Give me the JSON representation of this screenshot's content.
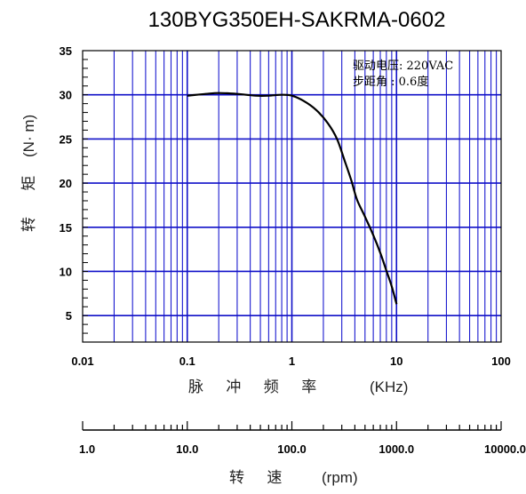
{
  "chart_data": {
    "type": "line",
    "title": "130BYG350EH-SAKRMA-0602",
    "xlabel": "脉 冲 频 率",
    "xlabel_unit": "(KHz)",
    "ylabel": "转 矩",
    "ylabel_unit": "(N· m)",
    "xscale": "log",
    "xlim": [
      0.01,
      100
    ],
    "ylim": [
      2,
      35
    ],
    "x_ticks": [
      "0.01",
      "0.1",
      "1",
      "10",
      "100"
    ],
    "y_ticks": [
      "5",
      "10",
      "15",
      "20",
      "25",
      "30",
      "35"
    ],
    "annotation": [
      "驱动电压: 220VAC",
      "步距角 : 0.6度"
    ],
    "series": [
      {
        "x": [
          0.1,
          0.15,
          0.2,
          0.3,
          0.45,
          0.6,
          0.8,
          1.0,
          1.3,
          1.7,
          2.2,
          2.7,
          3.2,
          3.7,
          4.2,
          5.0,
          6.0,
          7.0,
          8.0,
          9.0,
          10.0
        ],
        "y": [
          29.9,
          30.1,
          30.2,
          30.1,
          29.9,
          29.9,
          30.0,
          29.9,
          29.3,
          28.3,
          26.8,
          25.0,
          22.5,
          20.3,
          18.1,
          16.2,
          14.1,
          12.1,
          10.1,
          8.3,
          6.3
        ]
      }
    ],
    "grid": true,
    "secondary_axis": {
      "label": "转 速",
      "unit": "(rpm)",
      "xscale": "log",
      "xlim": [
        1.0,
        10000.0
      ],
      "ticks": [
        "1.0",
        "10.0",
        "100.0",
        "1000.0",
        "10000.0"
      ]
    }
  }
}
